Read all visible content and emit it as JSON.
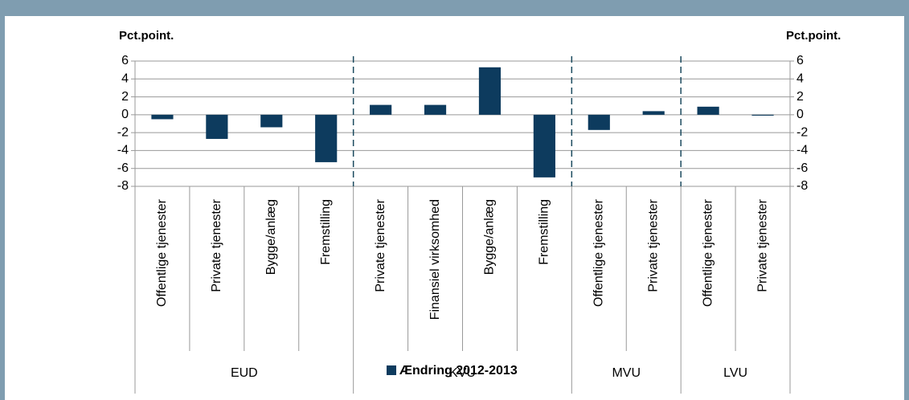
{
  "chart_data": {
    "type": "bar",
    "y_label": "Pct.point.",
    "y2_label": "Pct.point.",
    "groups": [
      {
        "name": "EUD",
        "categories": [
          "Offentlige tjenester",
          "Private tjenester",
          "Bygge/anlæg",
          "Fremstilling"
        ]
      },
      {
        "name": "KVU",
        "categories": [
          "Private tjenester",
          "Finansiel virksomhed",
          "Bygge/anlæg",
          "Fremstilling"
        ]
      },
      {
        "name": "MVU",
        "categories": [
          "Offentlige tjenester",
          "Private tjenester"
        ]
      },
      {
        "name": "LVU",
        "categories": [
          "Offentlige tjenester",
          "Private tjenester"
        ]
      }
    ],
    "series": [
      {
        "name": "Ændring 2012-2013",
        "color": "#0d3b5e",
        "values": [
          -0.5,
          -2.7,
          -1.4,
          -5.3,
          1.1,
          1.1,
          5.3,
          -7.0,
          -1.7,
          0.4,
          0.9,
          -0.1
        ]
      }
    ],
    "ylim": [
      -8,
      6
    ],
    "yticks": [
      -8,
      -6,
      -4,
      -2,
      0,
      2,
      4,
      6
    ],
    "y2lim": [
      -8,
      6
    ],
    "y2ticks": [
      -8,
      -6,
      -4,
      -2,
      0,
      2,
      4,
      6
    ],
    "grid": true,
    "legend": "bottom"
  }
}
